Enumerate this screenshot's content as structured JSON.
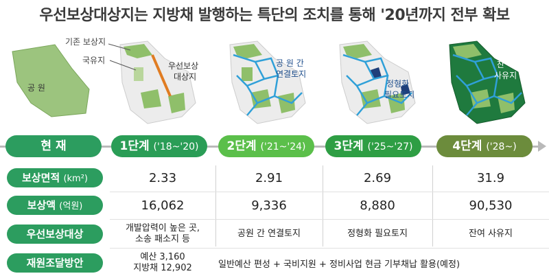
{
  "title": "우선보상대상지는 지방채 발행하는 특단의 조치를 통해 '20년까지 전부 확보",
  "maps": {
    "park_label": "공 원",
    "existing_label": "기존 보상지",
    "national_label": "국유지",
    "priority_label_1": "우선보상",
    "priority_label_2": "대상지",
    "link_label_1": "공 원 간",
    "link_label_2": "연결토지",
    "shape_label_1": "정형화",
    "shape_label_2": "필요토지",
    "rest_label_1": "잔 여",
    "rest_label_2": "사유지"
  },
  "stages": [
    {
      "name": "현  재",
      "years": ""
    },
    {
      "name": "1단계",
      "years": "('18~'20)"
    },
    {
      "name": "2단계",
      "years": "('21~'24)"
    },
    {
      "name": "3단계",
      "years": "('25~'27)"
    },
    {
      "name": "4단계",
      "years": "('28~)"
    }
  ],
  "rows": {
    "area": {
      "label": "보상면적",
      "unit": "(km²)",
      "values": [
        "2.33",
        "2.91",
        "2.69",
        "31.9"
      ]
    },
    "amount": {
      "label": "보상액",
      "unit": "(억원)",
      "values": [
        "16,062",
        "9,336",
        "8,880",
        "90,530"
      ]
    },
    "target": {
      "label": "우선보상대상",
      "values": [
        "개발압력이 높은 곳,",
        "소송 패소지 등",
        "공원 간 연결토지",
        "정형화 필요토지",
        "잔여 사유지"
      ]
    },
    "funding": {
      "label": "재원조달방안",
      "budget": "예산 3,160",
      "bond": "지방채 12,902",
      "rest": "일반예산 편성 + 국비지원 + 정비사업 현금 기부채납 활용(예정)"
    }
  },
  "colors": {
    "green": "#2c9d5f",
    "stage1": "#2a9d56",
    "stage2": "#5bbf4a",
    "stage3": "#2e9e44",
    "stage4": "#6c8c3c",
    "map_green": "#8fbf6a",
    "road_blue": "#2fa0d8",
    "orange": "#e07c22"
  }
}
